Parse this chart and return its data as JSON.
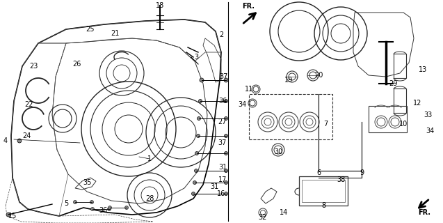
{
  "bg_color": "#f0f0f0",
  "fig_width": 6.37,
  "fig_height": 3.2,
  "dpi": 100,
  "image_b64": ""
}
